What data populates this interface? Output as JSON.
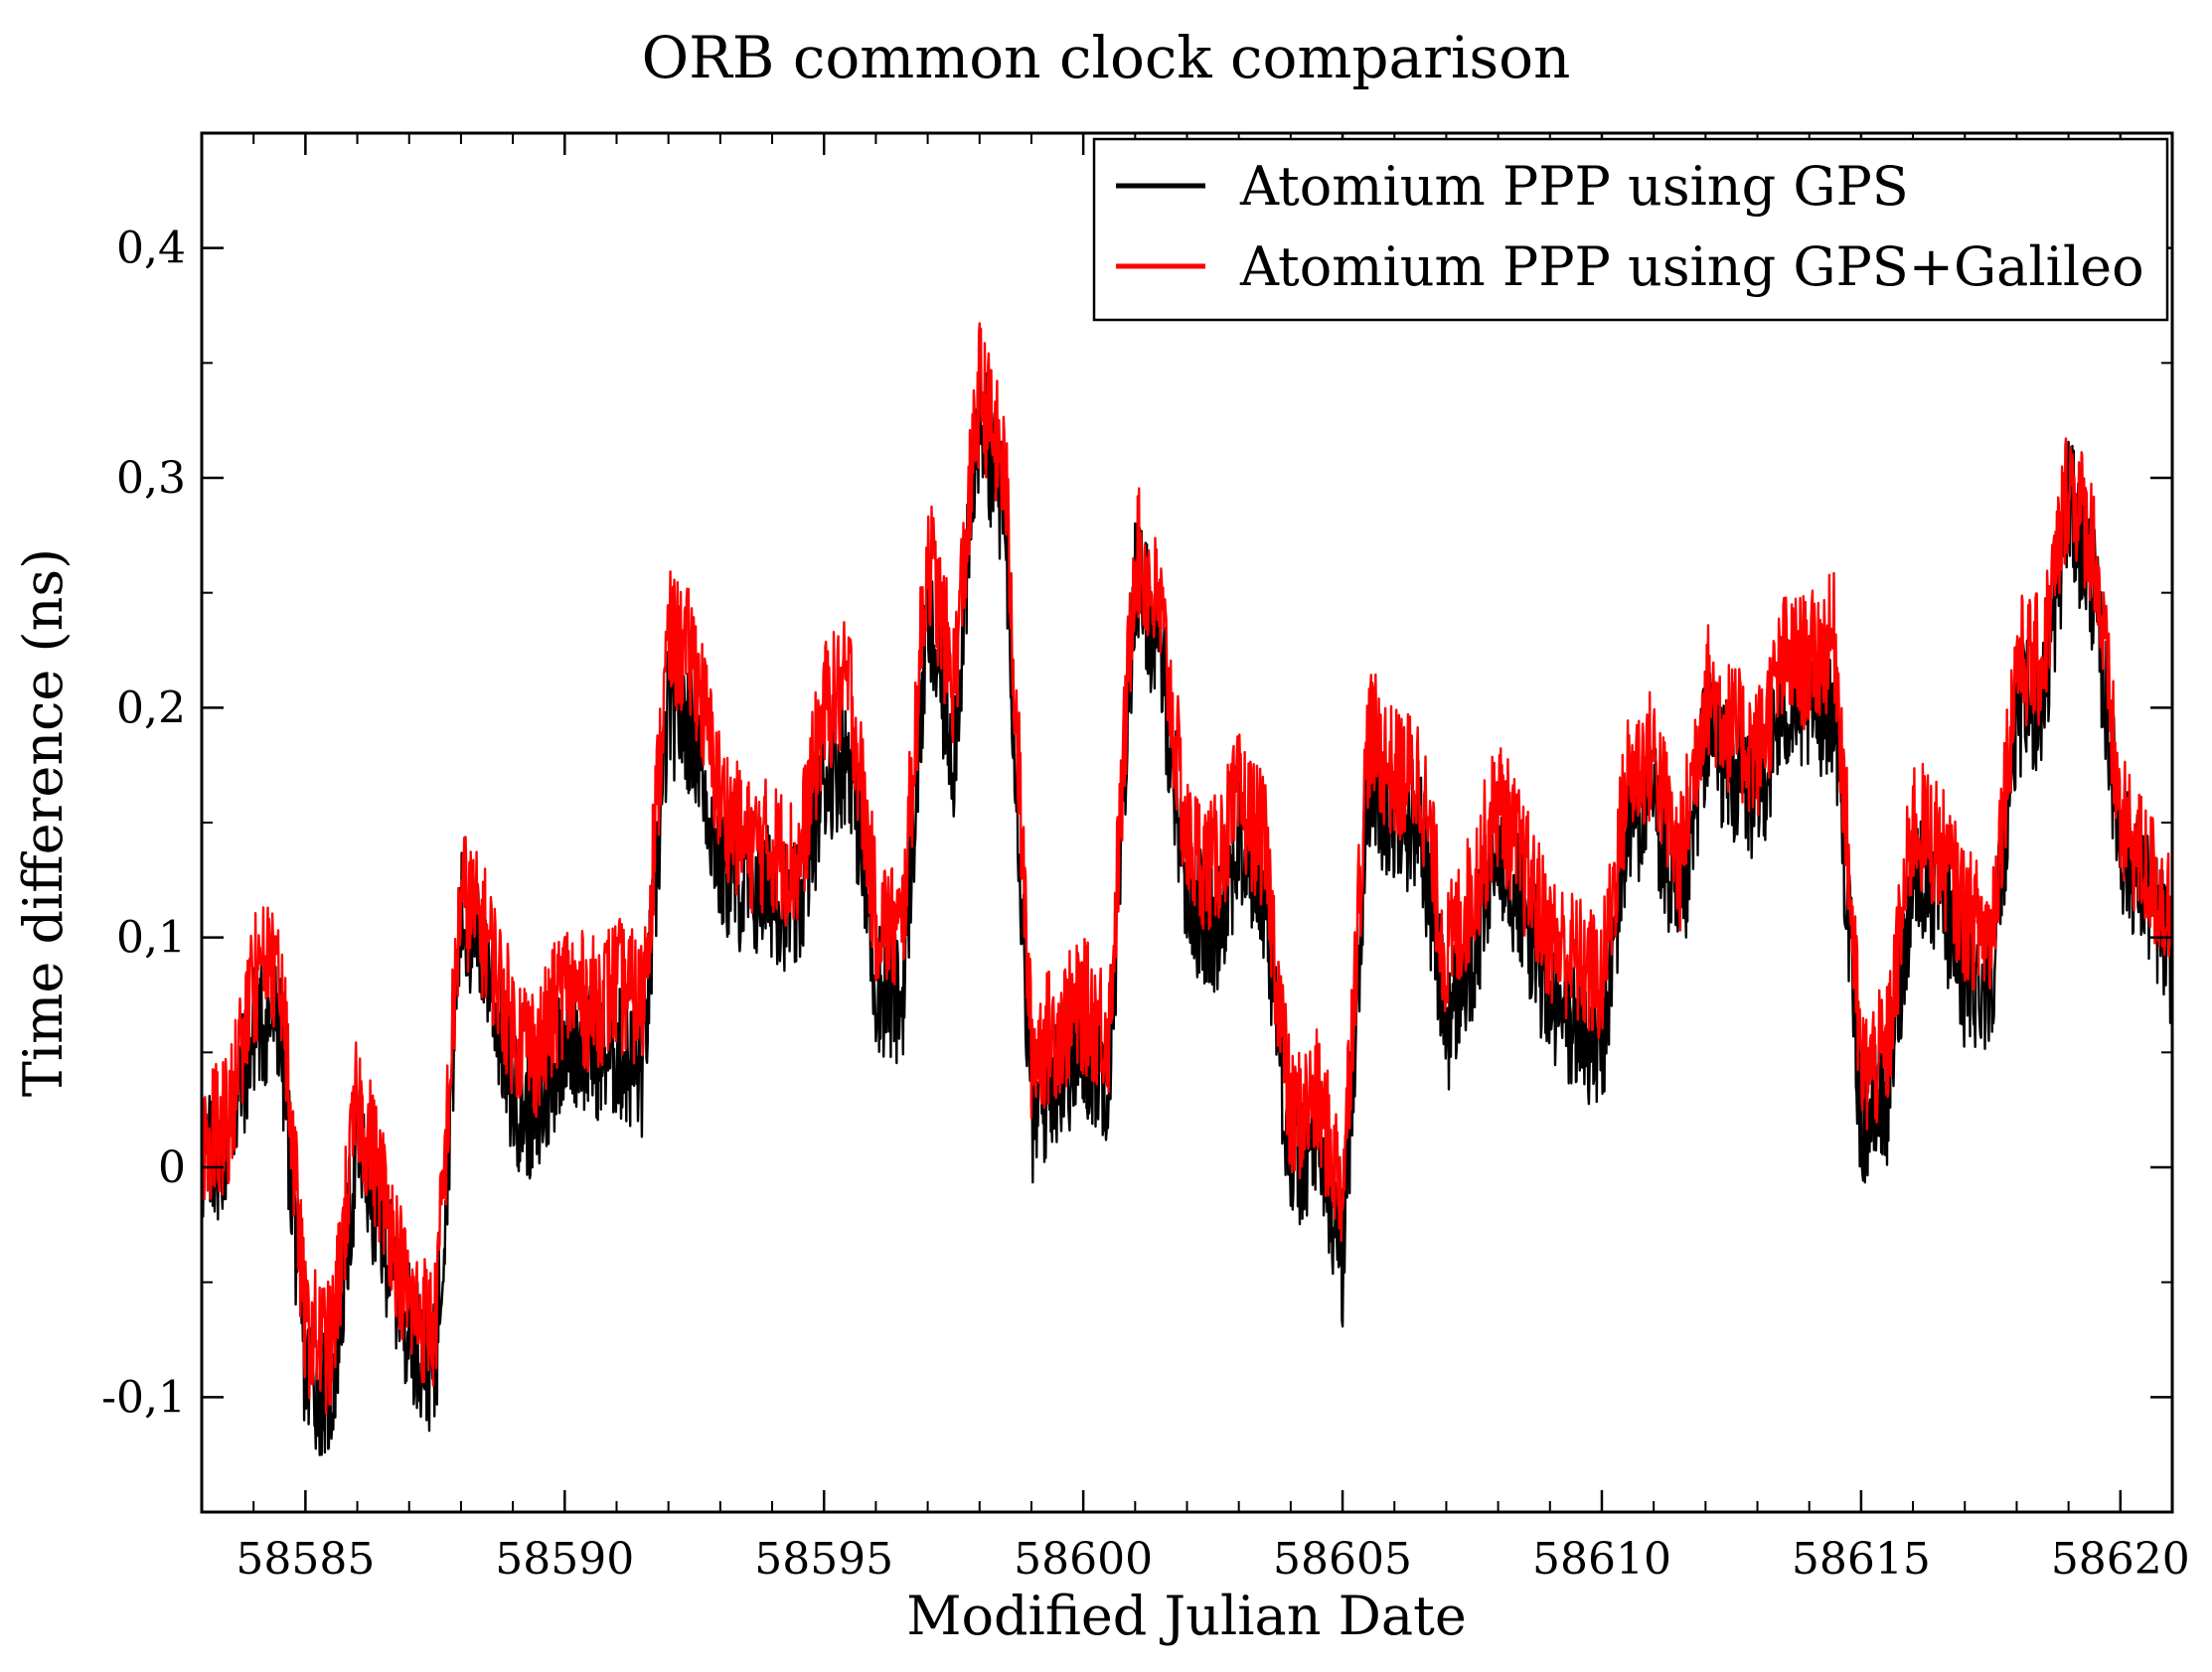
{
  "chart_data": {
    "type": "line",
    "title": "ORB common clock comparison",
    "xlabel": "Modified Julian Date",
    "ylabel": "Time difference (ns)",
    "xlim": [
      58583,
      58621
    ],
    "ylim": [
      -0.15,
      0.45
    ],
    "x_ticks": [
      58585,
      58590,
      58595,
      58600,
      58605,
      58610,
      58615,
      58620
    ],
    "x_tick_labels": [
      "58585",
      "58590",
      "58595",
      "58600",
      "58605",
      "58610",
      "58615",
      "58620"
    ],
    "y_ticks": [
      -0.1,
      0,
      0.1,
      0.2,
      0.3,
      0.4
    ],
    "y_tick_labels": [
      "-0,1",
      "0",
      "0,1",
      "0,2",
      "0,3",
      "0,4"
    ],
    "grid": false,
    "legend_position": "top-right",
    "x": [
      58583,
      58583.5,
      58584,
      58584.5,
      58585,
      58585.5,
      58586,
      58586.5,
      58587,
      58587.5,
      58588,
      58588.5,
      58589,
      58589.5,
      58590,
      58590.5,
      58591,
      58591.5,
      58592,
      58592.5,
      58593,
      58593.5,
      58594,
      58594.5,
      58595,
      58595.5,
      58596,
      58596.5,
      58597,
      58597.5,
      58598,
      58598.5,
      58599,
      58599.5,
      58600,
      58600.5,
      58601,
      58601.5,
      58602,
      58602.5,
      58603,
      58603.5,
      58604,
      58604.5,
      58605,
      58605.5,
      58606,
      58606.5,
      58607,
      58607.5,
      58608,
      58608.5,
      58609,
      58609.5,
      58610,
      58610.5,
      58611,
      58611.5,
      58612,
      58612.5,
      58613,
      58613.5,
      58614,
      58614.5,
      58615,
      58615.5,
      58616,
      58616.5,
      58617,
      58617.5,
      58618,
      58618.5,
      58619,
      58619.5,
      58620,
      58620.5,
      58621
    ],
    "series": [
      {
        "name": "Atomium PPP using GPS",
        "color": "#000000",
        "values": [
          0.0,
          0.01,
          0.06,
          0.065,
          -0.09,
          -0.1,
          0.01,
          -0.03,
          -0.07,
          -0.09,
          0.11,
          0.09,
          0.03,
          0.02,
          0.06,
          0.05,
          0.05,
          0.04,
          0.2,
          0.19,
          0.13,
          0.12,
          0.12,
          0.11,
          0.17,
          0.18,
          0.08,
          0.07,
          0.24,
          0.18,
          0.33,
          0.28,
          0.02,
          0.04,
          0.05,
          0.04,
          0.26,
          0.22,
          0.12,
          0.1,
          0.14,
          0.12,
          0.0,
          0.01,
          -0.04,
          0.17,
          0.15,
          0.15,
          0.06,
          0.09,
          0.14,
          0.11,
          0.07,
          0.06,
          0.05,
          0.15,
          0.16,
          0.1,
          0.19,
          0.17,
          0.16,
          0.2,
          0.2,
          0.2,
          0.02,
          0.03,
          0.13,
          0.12,
          0.08,
          0.08,
          0.2,
          0.2,
          0.29,
          0.25,
          0.14,
          0.12,
          0.09
        ]
      },
      {
        "name": "Atomium PPP using GPS+Galileo",
        "color": "#ff0000",
        "values": [
          0.01,
          0.02,
          0.08,
          0.09,
          -0.07,
          -0.08,
          0.03,
          -0.01,
          -0.06,
          -0.07,
          0.12,
          0.1,
          0.06,
          0.05,
          0.08,
          0.07,
          0.08,
          0.07,
          0.23,
          0.22,
          0.16,
          0.14,
          0.14,
          0.13,
          0.2,
          0.21,
          0.11,
          0.1,
          0.27,
          0.21,
          0.34,
          0.3,
          0.05,
          0.06,
          0.07,
          0.06,
          0.27,
          0.24,
          0.14,
          0.13,
          0.16,
          0.14,
          0.02,
          0.03,
          -0.01,
          0.19,
          0.17,
          0.17,
          0.09,
          0.12,
          0.16,
          0.13,
          0.1,
          0.09,
          0.08,
          0.17,
          0.18,
          0.13,
          0.21,
          0.19,
          0.18,
          0.22,
          0.22,
          0.23,
          0.04,
          0.05,
          0.15,
          0.14,
          0.11,
          0.1,
          0.22,
          0.22,
          0.3,
          0.27,
          0.15,
          0.13,
          0.11
        ]
      }
    ]
  }
}
